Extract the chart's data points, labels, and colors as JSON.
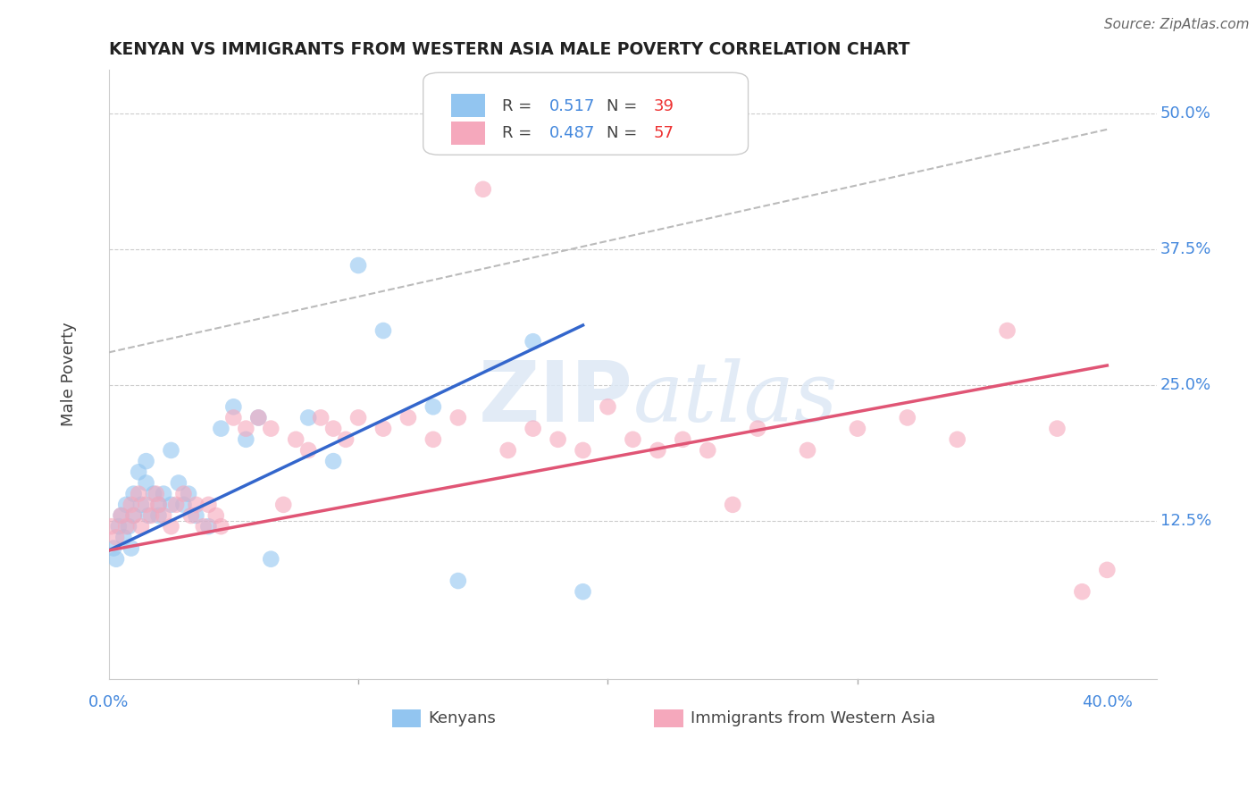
{
  "title": "KENYAN VS IMMIGRANTS FROM WESTERN ASIA MALE POVERTY CORRELATION CHART",
  "source": "Source: ZipAtlas.com",
  "xlabel_blue": "Kenyans",
  "xlabel_pink": "Immigrants from Western Asia",
  "ylabel": "Male Poverty",
  "xlim": [
    0.0,
    0.42
  ],
  "ylim": [
    -0.02,
    0.54
  ],
  "legend_blue_r": "0.517",
  "legend_blue_n": "39",
  "legend_pink_r": "0.487",
  "legend_pink_n": "57",
  "blue_color": "#92c5f0",
  "pink_color": "#f5a8bc",
  "blue_line_color": "#3366cc",
  "pink_line_color": "#e05575",
  "dashed_line_color": "#bbbbbb",
  "watermark_color": "#dde8f5",
  "background_color": "#ffffff",
  "blue_scatter_x": [
    0.002,
    0.003,
    0.004,
    0.005,
    0.006,
    0.007,
    0.008,
    0.009,
    0.01,
    0.01,
    0.012,
    0.013,
    0.015,
    0.015,
    0.016,
    0.018,
    0.02,
    0.02,
    0.022,
    0.025,
    0.025,
    0.028,
    0.03,
    0.032,
    0.035,
    0.04,
    0.045,
    0.05,
    0.055,
    0.06,
    0.065,
    0.08,
    0.09,
    0.1,
    0.11,
    0.13,
    0.14,
    0.17,
    0.19
  ],
  "blue_scatter_y": [
    0.1,
    0.09,
    0.12,
    0.13,
    0.11,
    0.14,
    0.12,
    0.1,
    0.13,
    0.15,
    0.17,
    0.14,
    0.16,
    0.18,
    0.13,
    0.15,
    0.13,
    0.14,
    0.15,
    0.14,
    0.19,
    0.16,
    0.14,
    0.15,
    0.13,
    0.12,
    0.21,
    0.23,
    0.2,
    0.22,
    0.09,
    0.22,
    0.18,
    0.36,
    0.3,
    0.23,
    0.07,
    0.29,
    0.06
  ],
  "pink_scatter_x": [
    0.001,
    0.003,
    0.005,
    0.007,
    0.009,
    0.01,
    0.012,
    0.013,
    0.015,
    0.017,
    0.019,
    0.02,
    0.022,
    0.025,
    0.027,
    0.03,
    0.033,
    0.035,
    0.038,
    0.04,
    0.043,
    0.045,
    0.05,
    0.055,
    0.06,
    0.065,
    0.07,
    0.075,
    0.08,
    0.085,
    0.09,
    0.095,
    0.1,
    0.11,
    0.12,
    0.13,
    0.14,
    0.15,
    0.16,
    0.17,
    0.18,
    0.19,
    0.2,
    0.21,
    0.22,
    0.23,
    0.24,
    0.25,
    0.26,
    0.28,
    0.3,
    0.32,
    0.34,
    0.36,
    0.38,
    0.39,
    0.4
  ],
  "pink_scatter_y": [
    0.12,
    0.11,
    0.13,
    0.12,
    0.14,
    0.13,
    0.15,
    0.12,
    0.14,
    0.13,
    0.15,
    0.14,
    0.13,
    0.12,
    0.14,
    0.15,
    0.13,
    0.14,
    0.12,
    0.14,
    0.13,
    0.12,
    0.22,
    0.21,
    0.22,
    0.21,
    0.14,
    0.2,
    0.19,
    0.22,
    0.21,
    0.2,
    0.22,
    0.21,
    0.22,
    0.2,
    0.22,
    0.43,
    0.19,
    0.21,
    0.2,
    0.19,
    0.23,
    0.2,
    0.19,
    0.2,
    0.19,
    0.14,
    0.21,
    0.19,
    0.21,
    0.22,
    0.2,
    0.3,
    0.21,
    0.06,
    0.08
  ]
}
